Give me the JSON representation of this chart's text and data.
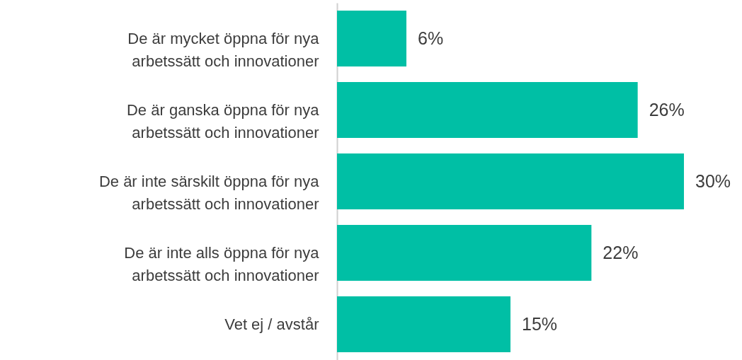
{
  "chart_data": {
    "type": "bar",
    "orientation": "horizontal",
    "categories": [
      "De är mycket öppna för nya arbetssätt och innovationer",
      "De är ganska öppna för nya arbetssätt och innovationer",
      "De är inte särskilt öppna för nya arbetssätt och innovationer",
      "De är inte alls öppna för nya arbetssätt och innovationer",
      "Vet ej / avstår"
    ],
    "values": [
      6,
      26,
      30,
      22,
      15
    ],
    "value_labels": [
      "6%",
      "26%",
      "30%",
      "22%",
      "15%"
    ],
    "color": "#00bfa5",
    "tick_labels": "y"
  }
}
